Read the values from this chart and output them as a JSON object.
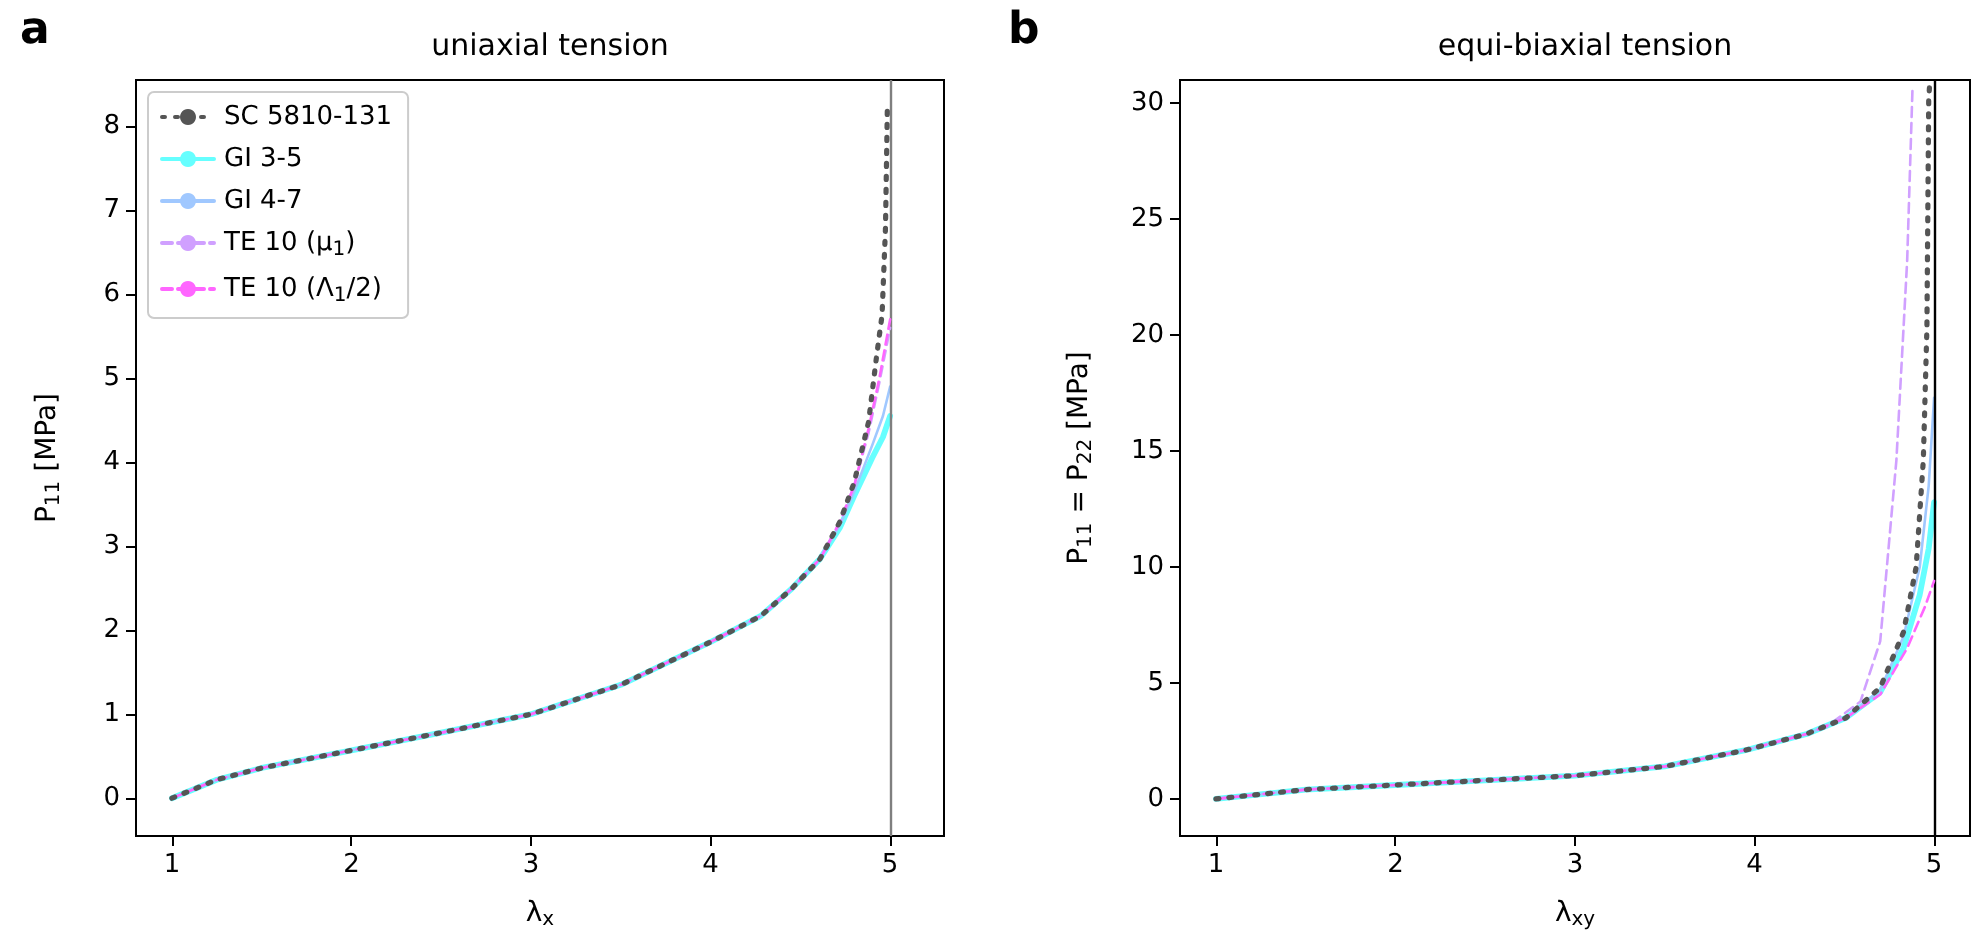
{
  "chart_data": [
    {
      "type": "line",
      "title": "uniaxial tension",
      "xlabel": "λ$_{x}$",
      "ylabel": "P$_{11}$ [MPa]",
      "annotations": [
        "a"
      ],
      "xlim": [
        0.8,
        5.3
      ],
      "ylim": [
        -0.45,
        8.55
      ],
      "xticks": [
        1,
        2,
        3,
        4,
        5
      ],
      "yticks": [
        0,
        1,
        2,
        3,
        4,
        5,
        6,
        7,
        8
      ],
      "grid": false,
      "legend": "top left",
      "marker": "none",
      "ref_lines": [
        {
          "axis": "x",
          "value": 5,
          "color": "#7f7f7f",
          "line_style": "solid"
        }
      ],
      "series": [
        {
          "name": "SC 5810-131",
          "color": "#555555",
          "line_style": "dotted",
          "x": [
            1,
            1.25,
            1.5,
            2,
            2.5,
            3,
            3.5,
            4,
            4.28,
            4.45,
            4.61,
            4.72,
            4.8,
            4.88,
            4.925,
            4.955,
            4.974,
            4.985
          ],
          "values": [
            0,
            0.22,
            0.36,
            0.57,
            0.78,
            1.0,
            1.35,
            1.86,
            2.17,
            2.49,
            2.85,
            3.29,
            3.76,
            4.48,
            5.27,
            5.75,
            6.78,
            8.29
          ]
        },
        {
          "name": "GI 3-5",
          "color": "#66ffff",
          "line_style": "solid",
          "x": [
            1,
            1.25,
            1.5,
            2,
            2.5,
            3,
            3.5,
            4,
            4.28,
            4.45,
            4.61,
            4.72,
            4.8,
            4.9,
            4.96,
            5
          ],
          "values": [
            0,
            0.22,
            0.36,
            0.57,
            0.78,
            1.0,
            1.35,
            1.86,
            2.17,
            2.49,
            2.85,
            3.22,
            3.6,
            4.05,
            4.3,
            4.55
          ]
        },
        {
          "name": "GI 4-7",
          "color": "#a0c8ff",
          "line_style": "solid",
          "x": [
            1,
            1.25,
            1.5,
            2,
            2.5,
            3,
            3.5,
            4,
            4.28,
            4.45,
            4.61,
            4.72,
            4.8,
            4.9,
            4.96,
            5
          ],
          "values": [
            0,
            0.22,
            0.36,
            0.57,
            0.78,
            1.0,
            1.35,
            1.86,
            2.17,
            2.49,
            2.85,
            3.25,
            3.65,
            4.2,
            4.55,
            4.9
          ]
        },
        {
          "name": "TE 10 (μ$_{1}$)",
          "color": "#d0a0ff",
          "line_style": "dashed",
          "x": [
            1,
            1.25,
            1.5,
            2,
            2.5,
            3,
            3.5,
            4,
            4.28,
            4.45,
            4.61,
            4.72,
            4.8,
            4.88,
            4.94,
            5
          ],
          "values": [
            0,
            0.22,
            0.36,
            0.57,
            0.78,
            1.0,
            1.35,
            1.86,
            2.17,
            2.49,
            2.85,
            3.29,
            3.72,
            4.35,
            4.95,
            5.6
          ]
        },
        {
          "name": "TE 10 (Λ$_{1}$/2)",
          "color": "#ff66ff",
          "line_style": "dashed",
          "x": [
            1,
            1.25,
            1.5,
            2,
            2.5,
            3,
            3.5,
            4,
            4.28,
            4.45,
            4.61,
            4.72,
            4.8,
            4.88,
            4.94,
            5
          ],
          "values": [
            0,
            0.22,
            0.36,
            0.57,
            0.78,
            1.0,
            1.35,
            1.86,
            2.17,
            2.49,
            2.85,
            3.29,
            3.72,
            4.4,
            5.0,
            5.7
          ]
        }
      ]
    },
    {
      "type": "line",
      "title": "equi-biaxial tension",
      "xlabel": "λ$_{xy}$",
      "ylabel": "P$_{11}$ = P$_{22}$ [MPa]",
      "annotations": [
        "b"
      ],
      "xlim": [
        0.8,
        5.2
      ],
      "ylim": [
        -1.6,
        31
      ],
      "xticks": [
        1,
        2,
        3,
        4,
        5
      ],
      "yticks": [
        0,
        5,
        10,
        15,
        20,
        25,
        30
      ],
      "grid": false,
      "legend": false,
      "marker": "none",
      "ref_lines": [
        {
          "axis": "x",
          "value": 5,
          "color": "#000000",
          "line_style": "solid"
        }
      ],
      "series": [
        {
          "color": "#555555",
          "line_style": "dotted",
          "x": [
            1,
            1.5,
            2,
            2.5,
            3,
            3.5,
            3.95,
            4.29,
            4.51,
            4.7,
            4.83,
            4.9,
            4.94,
            4.96,
            4.97,
            4.975
          ],
          "values": [
            0,
            0.4,
            0.6,
            0.8,
            1.0,
            1.4,
            2.1,
            2.8,
            3.5,
            4.8,
            7.2,
            10.0,
            14.6,
            20.3,
            30.1,
            30.8
          ]
        },
        {
          "color": "#66ffff",
          "line_style": "solid",
          "x": [
            1,
            1.5,
            2,
            2.5,
            3,
            3.5,
            3.95,
            4.29,
            4.51,
            4.7,
            4.83,
            4.92,
            4.97,
            5
          ],
          "values": [
            0,
            0.4,
            0.6,
            0.8,
            1.0,
            1.4,
            2.1,
            2.8,
            3.5,
            4.6,
            6.5,
            8.8,
            10.8,
            12.8
          ]
        },
        {
          "color": "#a0c8ff",
          "line_style": "solid",
          "x": [
            1,
            1.5,
            2,
            2.5,
            3,
            3.5,
            3.95,
            4.29,
            4.51,
            4.7,
            4.83,
            4.92,
            4.97,
            5
          ],
          "values": [
            0,
            0.4,
            0.6,
            0.8,
            1.0,
            1.4,
            2.1,
            2.8,
            3.5,
            4.7,
            7.0,
            10.0,
            13.5,
            17.3
          ]
        },
        {
          "color": "#d0a0ff",
          "line_style": "dashed",
          "x": [
            1,
            1.5,
            2,
            2.5,
            3,
            3.5,
            3.95,
            4.29,
            4.4,
            4.59,
            4.7,
            4.79,
            4.85,
            4.88
          ],
          "values": [
            0,
            0.4,
            0.6,
            0.8,
            1.0,
            1.4,
            2.1,
            2.8,
            3.1,
            4.2,
            6.8,
            14.6,
            23.2,
            30.7
          ]
        },
        {
          "color": "#ff66ff",
          "line_style": "dashed",
          "x": [
            1,
            1.5,
            2,
            2.5,
            3,
            3.5,
            3.95,
            4.29,
            4.51,
            4.7,
            4.85,
            4.95,
            5
          ],
          "values": [
            0,
            0.4,
            0.6,
            0.8,
            1.0,
            1.4,
            2.1,
            2.8,
            3.5,
            4.5,
            6.5,
            8.3,
            9.4
          ]
        }
      ]
    }
  ]
}
